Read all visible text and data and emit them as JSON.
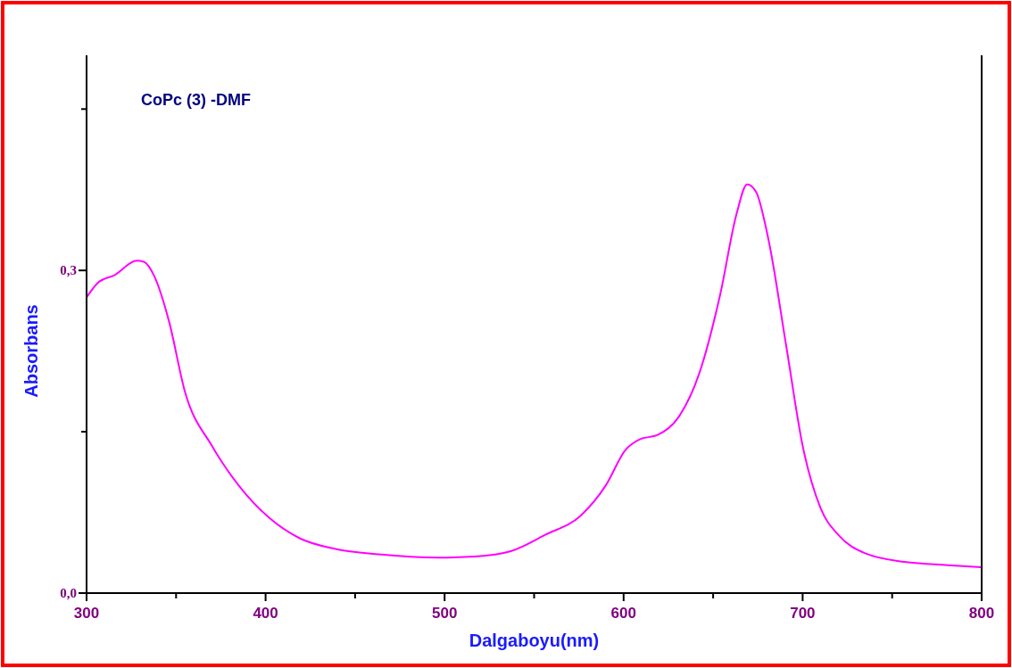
{
  "chart_data": {
    "type": "line",
    "xlabel": "Dalgaboyu(nm)",
    "ylabel": "Absorbans",
    "annotations": [
      "CoPc (3) -DMF"
    ],
    "x": [
      300,
      306,
      316,
      328,
      332,
      338,
      346,
      355,
      370,
      385,
      402,
      419,
      439,
      463,
      497,
      517,
      537,
      556,
      576,
      590,
      601,
      609,
      619,
      630,
      642,
      654,
      663,
      669,
      674,
      681,
      691,
      700,
      710,
      720,
      735,
      757,
      781,
      800
    ],
    "series": [
      {
        "color": "#ff00ff",
        "values": [
          0.275,
          0.288,
          0.296,
          0.309,
          0.308,
          0.294,
          0.253,
          0.187,
          0.137,
          0.1,
          0.07,
          0.051,
          0.041,
          0.036,
          0.033,
          0.034,
          0.039,
          0.054,
          0.072,
          0.1,
          0.133,
          0.143,
          0.147,
          0.162,
          0.203,
          0.278,
          0.352,
          0.38,
          0.373,
          0.328,
          0.228,
          0.137,
          0.079,
          0.054,
          0.037,
          0.029,
          0.026,
          0.024
        ]
      }
    ],
    "xlim": [
      300,
      800
    ],
    "xticks": [
      300,
      {
        "value": 350,
        "label": null
      },
      400,
      {
        "value": 450,
        "label": null
      },
      500,
      {
        "value": 550,
        "label": null
      },
      600,
      {
        "value": 650,
        "label": null
      },
      700,
      {
        "value": 750,
        "label": null
      },
      800
    ],
    "ylim": [
      0,
      0.5
    ],
    "yticks": [
      {
        "value": 0,
        "label": "0,0"
      },
      {
        "value": 0.15,
        "label": null
      },
      {
        "value": 0.3,
        "label": "0,3"
      },
      {
        "value": 0.45,
        "label": null
      }
    ],
    "grid": false,
    "line_style": "solid"
  }
}
